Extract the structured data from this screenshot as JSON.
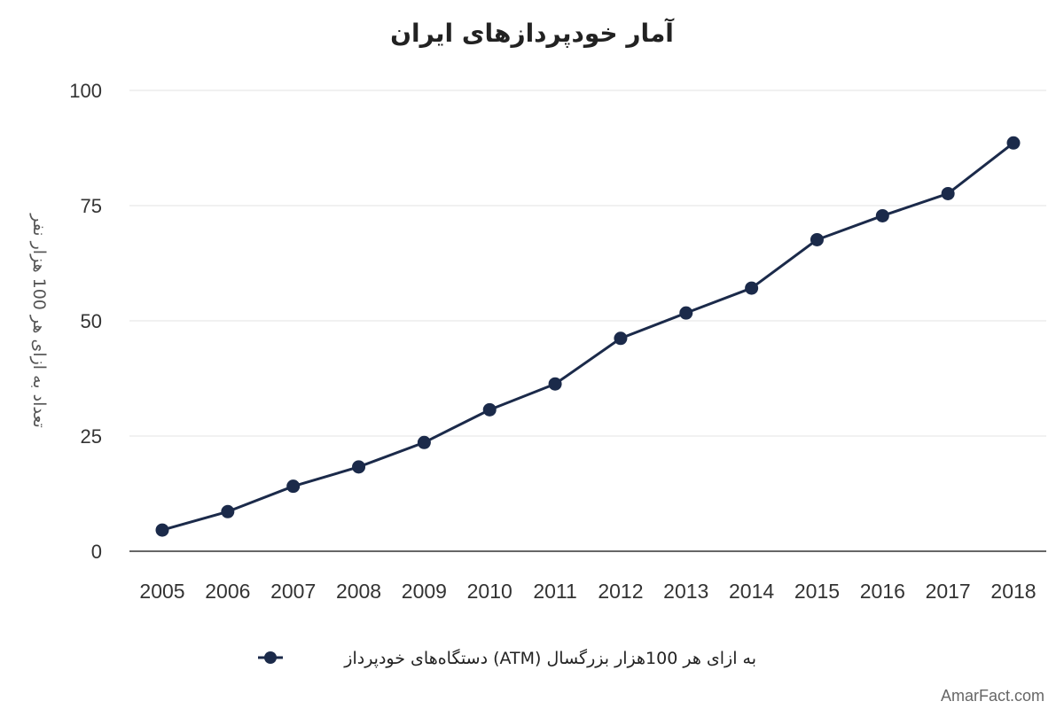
{
  "chart_data": {
    "type": "line",
    "title": "آمار خودپردازهای ایران",
    "xlabel": "",
    "ylabel": "تعداد به ازای هر 100 هزار نفر",
    "ylim": [
      0,
      100
    ],
    "yticks": [
      "0",
      "25",
      "50",
      "75",
      "100"
    ],
    "grid": true,
    "legend_position": "bottom",
    "categories": [
      "2005",
      "2006",
      "2007",
      "2008",
      "2009",
      "2010",
      "2011",
      "2012",
      "2013",
      "2014",
      "2015",
      "2016",
      "2017",
      "2018"
    ],
    "series": [
      {
        "name": "به ازای هر 100هزار بزرگسال (ATM) دستگاه‌های خودپرداز",
        "color": "#1b2a4a",
        "values": [
          4.6,
          8.6,
          14.1,
          18.3,
          23.6,
          30.7,
          36.3,
          46.2,
          51.7,
          57.1,
          67.6,
          72.8,
          77.6,
          88.6
        ]
      }
    ]
  },
  "watermark": "AmarFact.com"
}
